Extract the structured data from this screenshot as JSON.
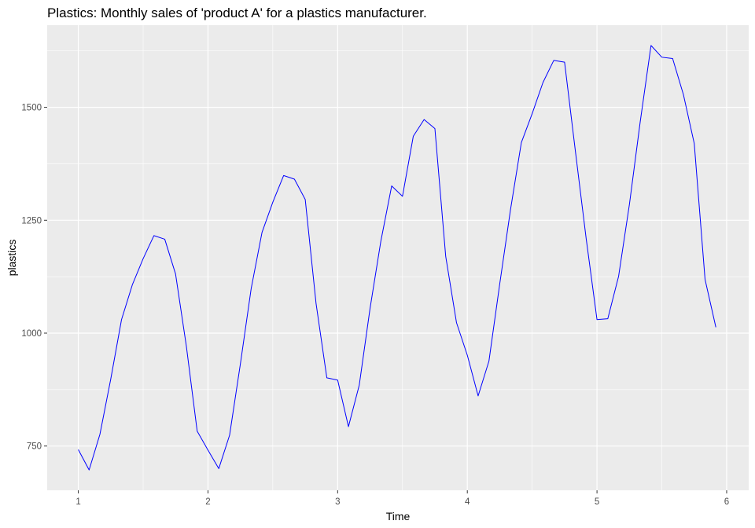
{
  "chart_data": {
    "type": "line",
    "title": "Plastics: Monthly sales of 'product A' for a plastics manufacturer.",
    "xlabel": "Time",
    "ylabel": "plastics",
    "xlim": [
      0.76,
      6.17
    ],
    "ylim": [
      652,
      1682
    ],
    "x_ticks": [
      1,
      2,
      3,
      4,
      5,
      6
    ],
    "y_ticks": [
      750,
      1000,
      1250,
      1500
    ],
    "grid": true,
    "legend": "none",
    "line_color": "#0000ff",
    "panel_color": "#ebebeb",
    "grid_color": "#ffffff",
    "series": [
      {
        "x_start": 1,
        "x_step": 0.08333333,
        "values": [
          742,
          697,
          776,
          898,
          1030,
          1107,
          1165,
          1216,
          1208,
          1131,
          971,
          783,
          741,
          700,
          774,
          932,
          1099,
          1223,
          1290,
          1349,
          1341,
          1296,
          1066,
          901,
          896,
          793,
          885,
          1055,
          1204,
          1326,
          1303,
          1436,
          1473,
          1453,
          1170,
          1023,
          951,
          861,
          938,
          1109,
          1274,
          1422,
          1486,
          1555,
          1604,
          1600,
          1403,
          1209,
          1030,
          1032,
          1126,
          1285,
          1468,
          1637,
          1611,
          1608,
          1528,
          1420,
          1119,
          1013
        ]
      }
    ]
  }
}
